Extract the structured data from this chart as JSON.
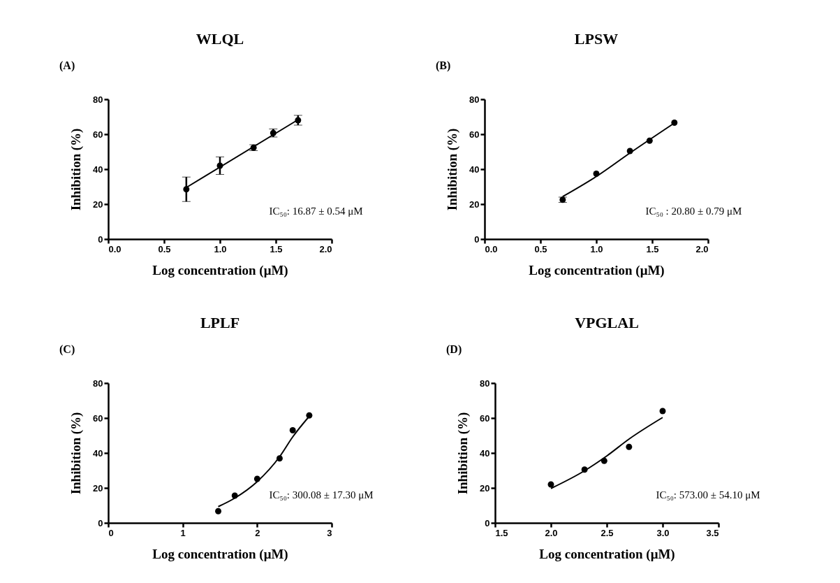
{
  "chart_data": [
    {
      "type": "scatter",
      "title": "WLQL",
      "xlabel": "Log concentration (μM)",
      "ylabel": "Inhibition (%)",
      "xlim": [
        0,
        2
      ],
      "xticks": [
        {
          "value": 0,
          "label": "0.0"
        },
        0.5,
        {
          "value": 1,
          "label": "1.0"
        },
        1.5,
        {
          "value": 2,
          "label": "2.0"
        }
      ],
      "ylim": [
        0,
        80
      ],
      "yticks": [
        0,
        20,
        40,
        60,
        80
      ],
      "grid": false,
      "marker": "circle",
      "annotations": [
        "(A)",
        "IC₅₀: 16.87 ±  0.54 μM"
      ],
      "series": [
        {
          "color": "#000000",
          "x": [
            0.699,
            1,
            1.301,
            1.477,
            1.699
          ],
          "values": [
            28.5,
            42,
            52.3,
            60.7,
            68
          ],
          "errors": [
            7,
            5,
            1.7,
            2.3,
            2.8
          ]
        },
        {
          "type": "line",
          "marker": "none",
          "color": "#000000",
          "x": [
            0.699,
            1.699
          ],
          "values": [
            29.5,
            68.3
          ]
        }
      ]
    },
    {
      "type": "scatter",
      "title": "LPSW",
      "xlabel": "Log concentration (μM)",
      "ylabel": "Inhibition (%)",
      "xlim": [
        0,
        2
      ],
      "xticks": [
        {
          "value": 0,
          "label": "0.0"
        },
        0.5,
        {
          "value": 1,
          "label": "1.0"
        },
        1.5,
        {
          "value": 2,
          "label": "2.0"
        }
      ],
      "ylim": [
        0,
        80
      ],
      "yticks": [
        0,
        20,
        40,
        60,
        80
      ],
      "grid": false,
      "marker": "circle",
      "annotations": [
        "(B)",
        "IC₅₀ : 20.80 ±  0.79 μM"
      ],
      "series": [
        {
          "color": "#000000",
          "x": [
            0.699,
            1,
            1.301,
            1.477,
            1.699
          ],
          "values": [
            22.5,
            37.4,
            50.4,
            56.3,
            66.6
          ],
          "errors": [
            1.5,
            null,
            null,
            null,
            null
          ]
        },
        {
          "type": "line",
          "marker": "none",
          "color": "#000000",
          "x": [
            0.699,
            1,
            1.3,
            1.699
          ],
          "values": [
            24.3,
            35.8,
            49.2,
            66.4
          ]
        }
      ]
    },
    {
      "type": "scatter",
      "title": "LPLF",
      "xlabel": "Log concentration (μM)",
      "ylabel": "Inhibition (%)",
      "xlim": [
        0,
        3
      ],
      "xticks": [
        0,
        1,
        2,
        3
      ],
      "ylim": [
        0,
        80
      ],
      "yticks": [
        0,
        20,
        40,
        60,
        80
      ],
      "grid": false,
      "marker": "circle",
      "annotations": [
        "(C)",
        "IC₅₀: 300.08 ±  17.30 μM"
      ],
      "series": [
        {
          "color": "#000000",
          "x": [
            1.477,
            1.699,
            2,
            2.301,
            2.477,
            2.699
          ],
          "values": [
            6.7,
            15.6,
            25.2,
            36.9,
            53,
            61.5
          ]
        },
        {
          "type": "line",
          "marker": "none",
          "color": "#000000",
          "x": [
            1.477,
            1.7,
            2,
            2.3,
            2.477,
            2.699
          ],
          "values": [
            9.3,
            14.2,
            23.6,
            37.8,
            49.2,
            61
          ]
        }
      ]
    },
    {
      "type": "scatter",
      "title": "VPGLAL",
      "xlabel": "Log concentration (μM)",
      "ylabel": "Inhibition (%)",
      "xlim": [
        1.5,
        3.5
      ],
      "xticks": [
        1.5,
        {
          "value": 2,
          "label": "2.0"
        },
        2.5,
        {
          "value": 3,
          "label": "3.0"
        },
        3.5
      ],
      "ylim": [
        0,
        80
      ],
      "yticks": [
        0,
        20,
        40,
        60,
        80
      ],
      "grid": false,
      "marker": "circle",
      "annotations": [
        "(D)",
        "IC₅₀: 573.00 ±  54.10 μM"
      ],
      "series": [
        {
          "color": "#000000",
          "x": [
            2,
            2.301,
            2.477,
            2.699,
            3
          ],
          "values": [
            22,
            30.5,
            35.5,
            43.5,
            64
          ]
        },
        {
          "type": "line",
          "marker": "none",
          "color": "#000000",
          "x": [
            2,
            2.3,
            2.5,
            2.7,
            3
          ],
          "values": [
            19.7,
            29.8,
            38.3,
            48,
            60.3
          ]
        }
      ]
    }
  ]
}
